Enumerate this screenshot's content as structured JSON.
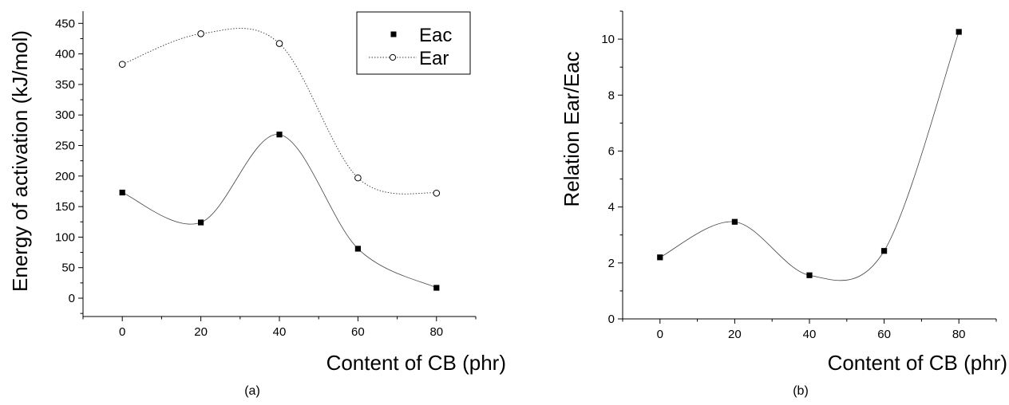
{
  "chart_data": [
    {
      "type": "scatter",
      "panel_label": "(a)",
      "xlabel": "Content of CB (phr)",
      "ylabel": "Energy of activation (kJ/mol)",
      "xlim": [
        -10,
        90
      ],
      "ylim": [
        -30,
        470
      ],
      "x_ticks": [
        0,
        20,
        40,
        60,
        80
      ],
      "y_ticks": [
        0,
        50,
        100,
        150,
        200,
        250,
        300,
        350,
        400,
        450
      ],
      "legend_position": "top-right",
      "series": [
        {
          "name": "Eac",
          "marker": "filled-square",
          "line": "solid-smooth",
          "x": [
            0,
            20,
            40,
            60,
            80
          ],
          "y": [
            173,
            124,
            268,
            81,
            17
          ]
        },
        {
          "name": "Ear",
          "marker": "open-circle",
          "line": "dotted-smooth",
          "x": [
            0,
            20,
            40,
            60,
            80
          ],
          "y": [
            383,
            433,
            417,
            197,
            172
          ]
        }
      ]
    },
    {
      "type": "scatter",
      "panel_label": "(b)",
      "xlabel": "Content of CB (phr)",
      "ylabel": "Relation Ear/Eac",
      "xlim": [
        -10,
        90
      ],
      "ylim": [
        0,
        11
      ],
      "x_ticks": [
        0,
        20,
        40,
        60,
        80
      ],
      "y_ticks": [
        0,
        2,
        4,
        6,
        8,
        10
      ],
      "series": [
        {
          "marker": "filled-square",
          "line": "solid-smooth",
          "x": [
            0,
            20,
            40,
            60,
            80
          ],
          "y": [
            2.2,
            3.47,
            1.56,
            2.43,
            10.26
          ]
        }
      ]
    }
  ]
}
